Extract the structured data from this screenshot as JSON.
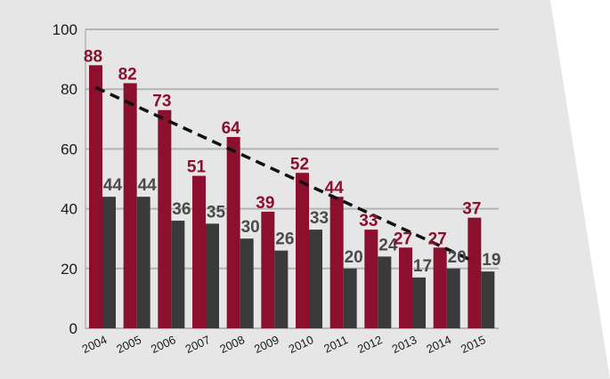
{
  "chart_data": {
    "type": "bar",
    "categories": [
      "2004",
      "2005",
      "2006",
      "2007",
      "2008",
      "2009",
      "2010",
      "2011",
      "2012",
      "2013",
      "2014",
      "2015"
    ],
    "series": [
      {
        "values": [
          88,
          82,
          73,
          51,
          64,
          39,
          52,
          44,
          33,
          27,
          27,
          37
        ],
        "color": "#8c0f2e",
        "label_color": "#8c0f2e"
      },
      {
        "values": [
          44,
          44,
          36,
          35,
          30,
          26,
          33,
          20,
          24,
          17,
          20,
          19
        ],
        "color": "#3a3a3a",
        "label_color": "#4a4a4a"
      }
    ],
    "trendline": {
      "series_index": 0,
      "style": "dashed",
      "color": "#111111"
    },
    "yticks": [
      "0",
      "20",
      "40",
      "60",
      "80",
      "100"
    ],
    "ylim": [
      0,
      100
    ],
    "grid": true,
    "data_labels": true,
    "colors": {
      "background_panel": "#e6e6e6",
      "grid": "#b3b3b3",
      "axis_text": "#1a1a1a"
    }
  }
}
